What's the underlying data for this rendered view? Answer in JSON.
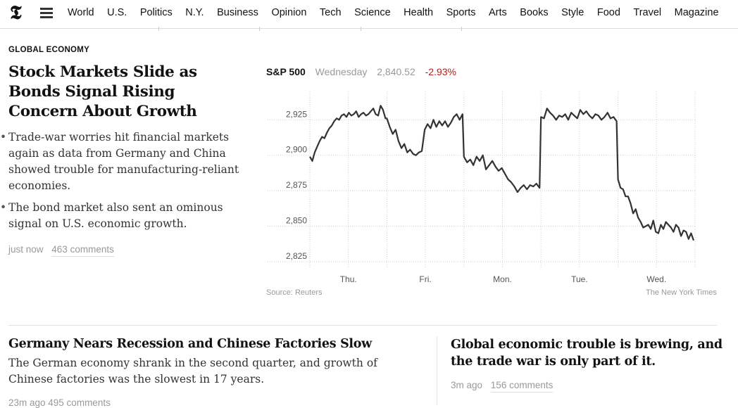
{
  "nav": {
    "items": [
      "World",
      "U.S.",
      "Politics",
      "N.Y.",
      "Business",
      "Opinion",
      "Tech",
      "Science",
      "Health",
      "Sports",
      "Arts",
      "Books",
      "Style",
      "Food",
      "Travel",
      "Magazine"
    ]
  },
  "logo": "𝕿",
  "lead": {
    "label": "GLOBAL ECONOMY",
    "headline": "Stock Markets Slide as Bonds Signal Rising Concern About Growth",
    "bullets": [
      "Trade-war worries hit financial markets again as data from Germany and China showed trouble for manufacturing-reliant economies.",
      "The bond market also sent an ominous signal on U.S. economic growth."
    ],
    "time": "just now",
    "comments": "463 comments"
  },
  "market": {
    "index": "S&P 500",
    "day": "Wednesday",
    "value": "2,840.52",
    "change": "-2.93%",
    "change_color": "#b02020",
    "source": "Source: Reuters",
    "credit": "The New York Times"
  },
  "chart_data": {
    "type": "line",
    "title": "",
    "xlabel": "",
    "ylabel": "",
    "ylim": [
      2820,
      2945
    ],
    "yticks": [
      "2,825",
      "2,850",
      "2,875",
      "2,900",
      "2,925"
    ],
    "ytick_values": [
      2825,
      2850,
      2875,
      2900,
      2925
    ],
    "categories": [
      "Thu.",
      "Fri.",
      "Mon.",
      "Tue.",
      "Wed."
    ],
    "grid": true,
    "series": [
      {
        "name": "",
        "sessions": [
          {
            "day": "Thu.",
            "values": [
              2899,
              2896,
              2902,
              2906,
              2910,
              2913,
              2912,
              2916,
              2919,
              2921,
              2924,
              2926,
              2925,
              2928,
              2929,
              2927,
              2930,
              2928,
              2929,
              2931,
              2927,
              2929,
              2930,
              2928,
              2929,
              2931,
              2933,
              2929,
              2928,
              2935,
              2932,
              2926
            ]
          },
          {
            "day": "Fri.",
            "values": [
              2926,
              2920,
              2915,
              2918,
              2910,
              2905,
              2908,
              2902,
              2904,
              2901,
              2900,
              2902,
              2903,
              2918,
              2922,
              2919,
              2925,
              2920,
              2924,
              2921,
              2924,
              2920,
              2923,
              2927,
              2929,
              2925,
              2929
            ]
          },
          {
            "day": "Mon.",
            "values": [
              2899,
              2895,
              2897,
              2893,
              2899,
              2896,
              2900,
              2890,
              2893,
              2896,
              2892,
              2889,
              2891,
              2887,
              2883,
              2881,
              2878,
              2874,
              2877,
              2879,
              2876,
              2879,
              2878,
              2880,
              2877
            ]
          },
          {
            "day": "Tue.",
            "values": [
              2927,
              2926,
              2933,
              2930,
              2928,
              2925,
              2928,
              2927,
              2929,
              2925,
              2930,
              2928,
              2926,
              2932,
              2929,
              2931,
              2928,
              2926,
              2929,
              2928,
              2925,
              2927,
              2930,
              2926,
              2927,
              2924
            ]
          },
          {
            "day": "Wed.",
            "values": [
              2883,
              2877,
              2876,
              2871,
              2871,
              2866,
              2859,
              2862,
              2856,
              2853,
              2849,
              2850,
              2851,
              2848,
              2854,
              2846,
              2845,
              2851,
              2848,
              2853,
              2851,
              2849,
              2846,
              2851,
              2849,
              2843,
              2847,
              2846,
              2841,
              2845,
              2840
            ]
          }
        ]
      }
    ]
  },
  "story2": {
    "title": "Germany Nears Recession and Chinese Factories Slow",
    "summary": "The German economy shrank in the second quarter, and growth of Chinese factories was the slowest in 17 years.",
    "meta": "23m ago   495 comments"
  },
  "story3": {
    "title": "Global economic trouble is brewing, and the trade war is only part of it.",
    "time": "3m ago",
    "comments": "156 comments"
  }
}
